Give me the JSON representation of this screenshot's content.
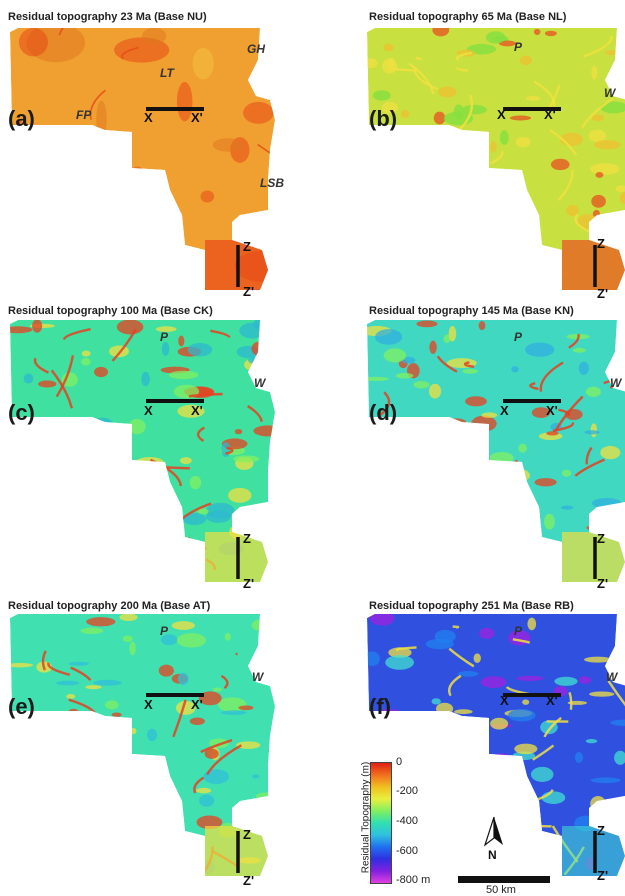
{
  "panels": [
    {
      "id": "a",
      "label": "(a)",
      "title": "Residual topography 23 Ma (Base NU)",
      "base": "#f0a030",
      "lows": "#e07820",
      "highs": "#e84818",
      "extras": [
        "#f4c040"
      ]
    },
    {
      "id": "b",
      "label": "(b)",
      "title": "Residual topography 65 Ma (Base NL)",
      "base": "#c8e040",
      "lows": "#f0c030",
      "highs": "#e85020",
      "extras": [
        "#80e040",
        "#f0e040"
      ]
    },
    {
      "id": "c",
      "label": "(c)",
      "title": "Residual topography 100 Ma (Base CK)",
      "base": "#40e0a0",
      "lows": "#2cb8d0",
      "highs": "#f0e040",
      "extras": [
        "#80f060",
        "#e84020"
      ]
    },
    {
      "id": "d",
      "label": "(d)",
      "title": "Residual topography 145 Ma (Base KN)",
      "base": "#40d8c0",
      "lows": "#30b0e0",
      "highs": "#f0e040",
      "extras": [
        "#80f060",
        "#e84020"
      ]
    },
    {
      "id": "e",
      "label": "(e)",
      "title": "Residual topography 200 Ma (Base AT)",
      "base": "#40e0b0",
      "lows": "#30c0d8",
      "highs": "#f0e040",
      "extras": [
        "#80f060",
        "#e84020"
      ]
    },
    {
      "id": "f",
      "label": "(f)",
      "title": "Residual topography 251 Ma (Base RB)",
      "base": "#3050e0",
      "lows": "#a020e0",
      "highs": "#40e0d0",
      "extras": [
        "#2080f0",
        "#f0e040"
      ]
    }
  ],
  "region_labels": {
    "a": {
      "GH": "GH",
      "LT": "LT",
      "FP": "FP",
      "LSB": "LSB"
    },
    "b": {
      "P": "P",
      "W": "W"
    },
    "c": {
      "P": "P",
      "W": "W"
    },
    "d": {
      "P": "P",
      "W": "W"
    },
    "e": {
      "P": "P",
      "W": "W"
    },
    "f": {
      "P": "P",
      "W": "W"
    }
  },
  "section_labels": {
    "x": "X",
    "x_prime": "X'",
    "z": "Z",
    "z_prime": "Z'"
  },
  "colorbar": {
    "axis_label": "Residual Topography (m)",
    "ticks": [
      "0",
      "-200",
      "-400",
      "-600",
      "-800 m"
    ],
    "stops": [
      "#e02010",
      "#f07020",
      "#f0c020",
      "#e8f040",
      "#80f060",
      "#30e0b0",
      "#30c0e0",
      "#2070f0",
      "#3030e0",
      "#8020e0",
      "#e040e0"
    ]
  },
  "north_arrow": {
    "label": "N"
  },
  "scale_bar": {
    "label": "50 km"
  }
}
